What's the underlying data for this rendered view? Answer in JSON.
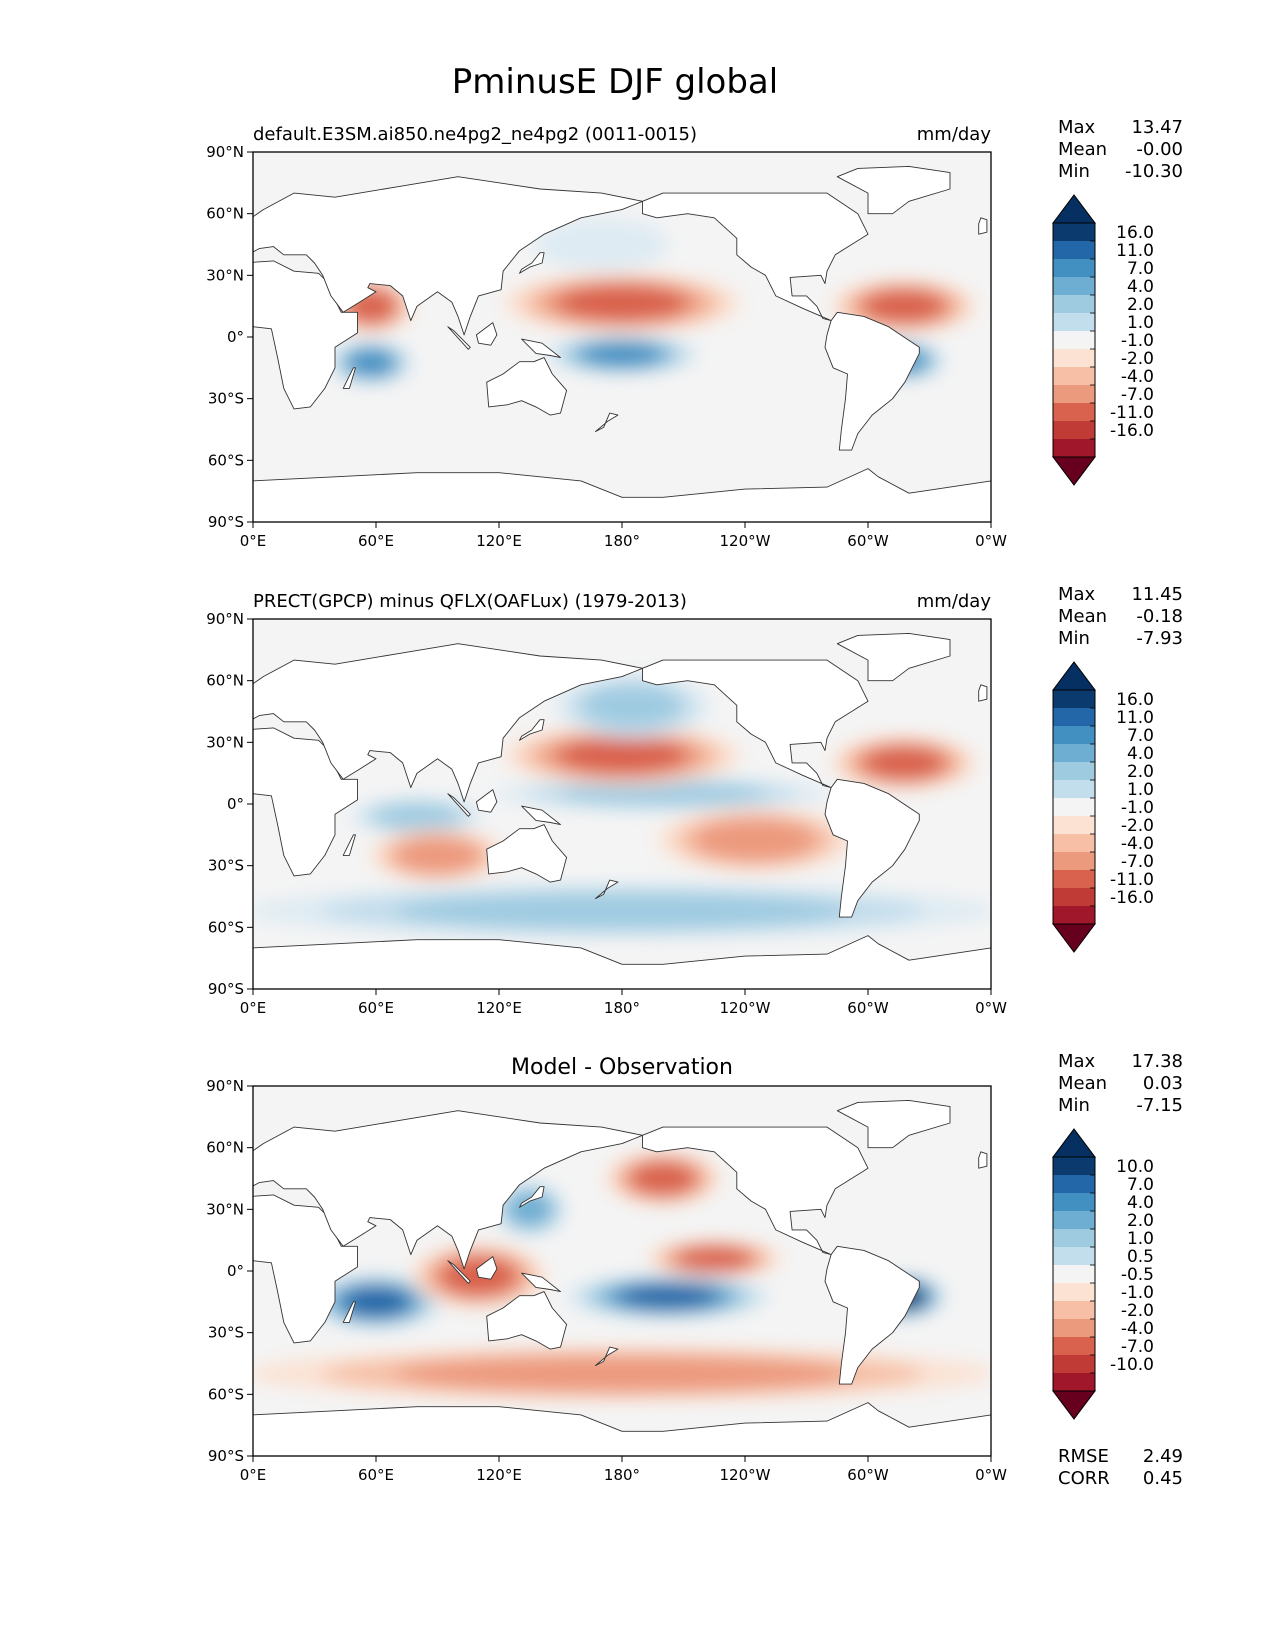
{
  "figure": {
    "title": "PminusE DJF global"
  },
  "axis_ticks": {
    "x": [
      "0°E",
      "60°E",
      "120°E",
      "180°",
      "120°W",
      "60°W",
      "0°W"
    ],
    "y": [
      "90°N",
      "60°N",
      "30°N",
      "0°",
      "30°S",
      "60°S",
      "90°S"
    ]
  },
  "colors": {
    "pos": [
      "#f4f4f4",
      "#deebf3",
      "#c2ddec",
      "#9fcbe1",
      "#6eaed2",
      "#4290c2",
      "#2467a8",
      "#0b3b6e",
      "#053061"
    ],
    "neg": [
      "#f7f7f7",
      "#fbe2d3",
      "#f6bfa6",
      "#ec9a7e",
      "#d9624e",
      "#c03a36",
      "#a0162a",
      "#67001f"
    ],
    "land": "#ffffff",
    "ocean_neutral": "#f4f4f4",
    "coast": "#333333"
  },
  "panels": [
    {
      "id": "model",
      "left_title": "default.E3SM.ai850.ne4pg2_ne4pg2 (0011-0015)",
      "center_title": "",
      "units": "mm/day",
      "stats": [
        {
          "label": "Max",
          "value": "13.47"
        },
        {
          "label": "Mean",
          "value": "-0.00"
        },
        {
          "label": "Min",
          "value": "-10.30"
        }
      ],
      "colorbar_levels": [
        "16.0",
        "11.0",
        "7.0",
        "4.0",
        "2.0",
        "1.0",
        "-1.0",
        "-2.0",
        "-4.0",
        "-7.0",
        "-11.0",
        "-16.0"
      ],
      "extra_stats": []
    },
    {
      "id": "obs",
      "left_title": "PRECT(GPCP) minus QFLX(OAFLux) (1979-2013)",
      "center_title": "",
      "units": "mm/day",
      "stats": [
        {
          "label": "Max",
          "value": "11.45"
        },
        {
          "label": "Mean",
          "value": "-0.18"
        },
        {
          "label": "Min",
          "value": "-7.93"
        }
      ],
      "colorbar_levels": [
        "16.0",
        "11.0",
        "7.0",
        "4.0",
        "2.0",
        "1.0",
        "-1.0",
        "-2.0",
        "-4.0",
        "-7.0",
        "-11.0",
        "-16.0"
      ],
      "extra_stats": []
    },
    {
      "id": "diff",
      "left_title": "",
      "center_title": "Model - Observation",
      "units": "",
      "stats": [
        {
          "label": "Max",
          "value": "17.38"
        },
        {
          "label": "Mean",
          "value": "0.03"
        },
        {
          "label": "Min",
          "value": "-7.15"
        }
      ],
      "colorbar_levels": [
        "10.0",
        "7.0",
        "4.0",
        "2.0",
        "1.0",
        "0.5",
        "-0.5",
        "-1.0",
        "-2.0",
        "-4.0",
        "-7.0",
        "-10.0"
      ],
      "extra_stats": [
        {
          "label": "RMSE",
          "value": "2.49"
        },
        {
          "label": "CORR",
          "value": "0.45"
        }
      ]
    }
  ],
  "chart_data": [
    {
      "type": "heatmap",
      "panel": "model",
      "projection": "PlateCarree, central longitude 180",
      "lon_range": [
        0,
        360
      ],
      "lat_range": [
        -90,
        90
      ],
      "features": [
        {
          "name": "S Indian Ocean wet band",
          "lon": [
            40,
            75
          ],
          "lat": [
            -20,
            -5
          ],
          "level": 5
        },
        {
          "name": "SPCZ wet band",
          "lon": [
            145,
            215
          ],
          "lat": [
            -15,
            -2
          ],
          "level": 5
        },
        {
          "name": "S Atlantic / Brazil wet",
          "lon": [
            300,
            335
          ],
          "lat": [
            -18,
            -5
          ],
          "level": 5
        },
        {
          "name": "Arabian Sea dry",
          "lon": [
            40,
            75
          ],
          "lat": [
            5,
            25
          ],
          "level": -4
        },
        {
          "name": "N Pacific subtropical dry",
          "lon": [
            125,
            235
          ],
          "lat": [
            5,
            28
          ],
          "level": -4
        },
        {
          "name": "N Atlantic subtropical dry",
          "lon": [
            285,
            350
          ],
          "lat": [
            5,
            25
          ],
          "level": -4
        },
        {
          "name": "N Pacific storm track wet",
          "lon": [
            140,
            200
          ],
          "lat": [
            35,
            55
          ],
          "level": 1
        }
      ]
    },
    {
      "type": "heatmap",
      "panel": "obs",
      "projection": "PlateCarree, central longitude 180",
      "lon_range": [
        0,
        360
      ],
      "lat_range": [
        -90,
        90
      ],
      "features": [
        {
          "name": "ITCZ Pacific wet",
          "lon": [
            120,
            280
          ],
          "lat": [
            0,
            10
          ],
          "level": 3
        },
        {
          "name": "Indian Ocean wet",
          "lon": [
            50,
            110
          ],
          "lat": [
            -12,
            0
          ],
          "level": 3
        },
        {
          "name": "N Pacific subtropical dry",
          "lon": [
            125,
            235
          ],
          "lat": [
            12,
            35
          ],
          "level": -4
        },
        {
          "name": "N Atlantic subtropical dry",
          "lon": [
            285,
            350
          ],
          "lat": [
            10,
            30
          ],
          "level": -4
        },
        {
          "name": "S Pacific subtropical dry",
          "lon": [
            200,
            290
          ],
          "lat": [
            -30,
            -5
          ],
          "level": -3
        },
        {
          "name": "S Indian subtropical dry",
          "lon": [
            60,
            120
          ],
          "lat": [
            -35,
            -15
          ],
          "level": -3
        },
        {
          "name": "Southern Ocean wet belt",
          "lon": [
            0,
            360
          ],
          "lat": [
            -62,
            -42
          ],
          "level": 3
        },
        {
          "name": "N Pacific storm track wet",
          "lon": [
            150,
            220
          ],
          "lat": [
            35,
            60
          ],
          "level": 3
        }
      ]
    },
    {
      "type": "heatmap",
      "panel": "diff",
      "projection": "PlateCarree, central longitude 180",
      "lon_range": [
        0,
        360
      ],
      "lat_range": [
        -90,
        90
      ],
      "features": [
        {
          "name": "S Indian Ocean positive",
          "lon": [
            30,
            90
          ],
          "lat": [
            -25,
            -5
          ],
          "level": 6
        },
        {
          "name": "Central Pacific positive",
          "lon": [
            155,
            250
          ],
          "lat": [
            -20,
            -5
          ],
          "level": 6
        },
        {
          "name": "Brazil positive",
          "lon": [
            300,
            335
          ],
          "lat": [
            -20,
            -5
          ],
          "level": 7
        },
        {
          "name": "Maritime continent negative",
          "lon": [
            80,
            140
          ],
          "lat": [
            -15,
            10
          ],
          "level": -4
        },
        {
          "name": "Equatorial Pacific negative",
          "lon": [
            195,
            255
          ],
          "lat": [
            0,
            12
          ],
          "level": -4
        },
        {
          "name": "Southern Ocean negative",
          "lon": [
            0,
            360
          ],
          "lat": [
            -60,
            -40
          ],
          "level": -3
        },
        {
          "name": "N Pacific negative",
          "lon": [
            175,
            225
          ],
          "lat": [
            35,
            55
          ],
          "level": -4
        },
        {
          "name": "Kuroshio positive",
          "lon": [
            120,
            150
          ],
          "lat": [
            20,
            40
          ],
          "level": 4
        }
      ]
    }
  ]
}
